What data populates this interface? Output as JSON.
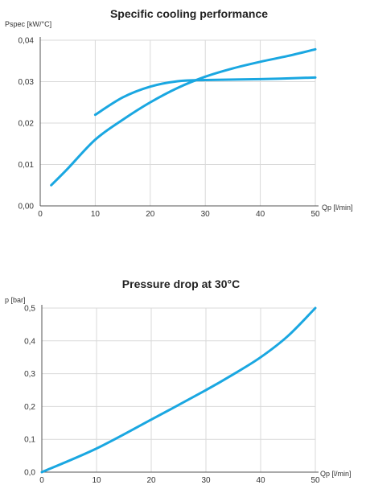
{
  "chart_data": [
    {
      "type": "line",
      "title": "Specific cooling performance",
      "ylabel": "Pspec [kW/°C]",
      "xlabel": "Qp [l/min]",
      "xlim": [
        0,
        50
      ],
      "ylim": [
        0,
        0.04
      ],
      "grid": true,
      "x_ticks": [
        "0",
        "10",
        "20",
        "30",
        "40",
        "50"
      ],
      "y_ticks": [
        "0,00",
        "0,01",
        "0,02",
        "0,03",
        "0,04"
      ],
      "color": "#1aa7e1",
      "series": [
        {
          "x": [
            2,
            5,
            10,
            15,
            20,
            25,
            30,
            35,
            40,
            45,
            50
          ],
          "values": [
            0.005,
            0.009,
            0.016,
            0.0208,
            0.025,
            0.0285,
            0.0312,
            0.0332,
            0.0348,
            0.0362,
            0.0378
          ]
        },
        {
          "x": [
            10,
            15,
            20,
            25,
            30,
            40,
            50
          ],
          "values": [
            0.022,
            0.0262,
            0.0288,
            0.0301,
            0.0304,
            0.0306,
            0.031
          ]
        }
      ]
    },
    {
      "type": "line",
      "title": "Pressure drop at 30°C",
      "ylabel": "p [bar]",
      "xlabel": "Qp [l/min]",
      "xlim": [
        0,
        50
      ],
      "ylim": [
        0,
        0.5
      ],
      "grid": true,
      "x_ticks": [
        "0",
        "10",
        "20",
        "30",
        "40",
        "50"
      ],
      "y_ticks": [
        "0,0",
        "0,1",
        "0,2",
        "0,3",
        "0,4",
        "0,5"
      ],
      "color": "#1aa7e1",
      "series": [
        {
          "x": [
            0,
            10,
            20,
            30,
            35,
            40,
            45,
            50
          ],
          "values": [
            0,
            0.072,
            0.16,
            0.25,
            0.298,
            0.35,
            0.415,
            0.5
          ]
        }
      ]
    }
  ]
}
